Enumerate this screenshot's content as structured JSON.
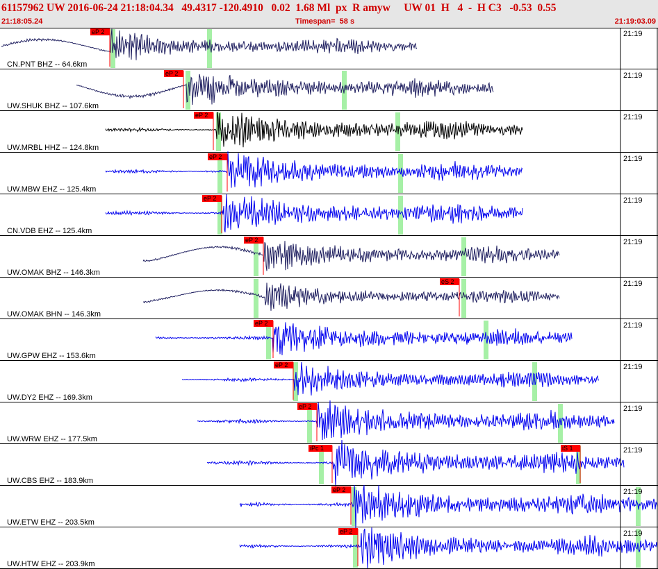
{
  "header": {
    "title": "61157962 UW 2016-06-24 21:18:04.34   49.4317 -120.4910   0.02  1.68 Ml  px  R amyw     UW 01  H   4  -  H C3   -0.53  0.55",
    "start_time": "21:18:05.24",
    "timespan": "Timespan=  58 s",
    "end_time": "21:19:03.09"
  },
  "colors": {
    "pick": "#ff0000",
    "window": "#a6f0a6",
    "navy": "#202060",
    "black": "#000000",
    "blue": "#0000ee"
  },
  "channels": [
    {
      "label": "CN.PNT BHZ -- 64.6km",
      "tick": "21:19",
      "pick_label": "eP 2",
      "pick_x": 158,
      "green": [
        162,
        301
      ],
      "start": 2,
      "end": 600,
      "onset": 160,
      "color": "navy",
      "amp": 20,
      "seed": 11
    },
    {
      "label": "UW.SHUK BHZ -- 107.6km",
      "tick": "21:19",
      "pick_label": "eP 2",
      "pick_x": 264,
      "green": [
        270,
        495
      ],
      "start": 110,
      "end": 710,
      "onset": 268,
      "color": "navy",
      "amp": 24,
      "seed": 12
    },
    {
      "label": "UW.MRBL HHZ -- 124.8km",
      "tick": "21:19",
      "pick_label": "eP 2",
      "pick_x": 307,
      "green": [
        314,
        572
      ],
      "start": 152,
      "end": 752,
      "onset": 312,
      "color": "black",
      "amp": 26,
      "seed": 13
    },
    {
      "label": "UW.MBW EHZ -- 125.4km",
      "tick": "21:19",
      "pick_label": "eP 2",
      "pick_x": 327,
      "green": [
        316,
        576
      ],
      "start": 152,
      "end": 752,
      "onset": 328,
      "color": "blue",
      "amp": 24,
      "seed": 14
    },
    {
      "label": "CN.VDB EHZ -- 125.4km",
      "tick": "21:19",
      "pick_label": "eP 2",
      "pick_x": 319,
      "green": [
        316,
        576
      ],
      "start": 152,
      "end": 752,
      "onset": 320,
      "color": "blue",
      "amp": 26,
      "seed": 15
    },
    {
      "label": "UW.OMAK BHZ -- 146.3km",
      "tick": "21:19",
      "pick_label": "eP 2",
      "pick_x": 379,
      "green": [
        368,
        667
      ],
      "start": 206,
      "end": 805,
      "onset": 380,
      "color": "navy",
      "amp": 22,
      "seed": 16
    },
    {
      "label": "UW.OMAK BHN -- 146.3km",
      "tick": "21:19",
      "pick_label": "eS 2",
      "pick_x": 661,
      "green": [
        368,
        667
      ],
      "start": 206,
      "end": 805,
      "onset": 380,
      "color": "navy",
      "amp": 18,
      "seed": 17
    },
    {
      "label": "UW.GPW EHZ -- 153.6km",
      "tick": "21:19",
      "pick_label": "eP 2",
      "pick_x": 393,
      "green": [
        386,
        699
      ],
      "start": 224,
      "end": 823,
      "onset": 393,
      "color": "blue",
      "amp": 24,
      "seed": 18
    },
    {
      "label": "UW.DY2 EHZ -- 169.3km",
      "tick": "21:19",
      "pick_label": "eP 2",
      "pick_x": 422,
      "green": [
        425,
        769
      ],
      "start": 262,
      "end": 862,
      "onset": 424,
      "color": "blue",
      "amp": 22,
      "seed": 19
    },
    {
      "label": "UW.WRW EHZ -- 177.5km",
      "tick": "21:19",
      "pick_label": "eP 2",
      "pick_x": 456,
      "green": [
        445,
        806
      ],
      "start": 284,
      "end": 884,
      "onset": 456,
      "color": "blue",
      "amp": 26,
      "seed": 20
    },
    {
      "label": "UW.CBS EHZ -- 183.9km",
      "tick": "21:19",
      "pick_label": "iPc 1",
      "pick_label2": "iS 1",
      "pick_x": 478,
      "pick_x2": 835,
      "green": [
        462,
        832
      ],
      "start": 298,
      "end": 898,
      "onset": 480,
      "color": "blue",
      "amp": 28,
      "seed": 21
    },
    {
      "label": "UW.ETW EHZ -- 203.5km",
      "tick": "21:19",
      "pick_label": "eP 2",
      "pick_x": 505,
      "green": [
        509,
        918
      ],
      "start": 345,
      "end": 946,
      "onset": 510,
      "color": "blue",
      "amp": 28,
      "seed": 22
    },
    {
      "label": "UW.HTW EHZ -- 203.9km",
      "tick": "21:19",
      "pick_label": "eP 2",
      "pick_x": 515,
      "green": [
        511,
        918
      ],
      "start": 345,
      "end": 946,
      "onset": 520,
      "color": "blue",
      "amp": 26,
      "seed": 23
    }
  ]
}
